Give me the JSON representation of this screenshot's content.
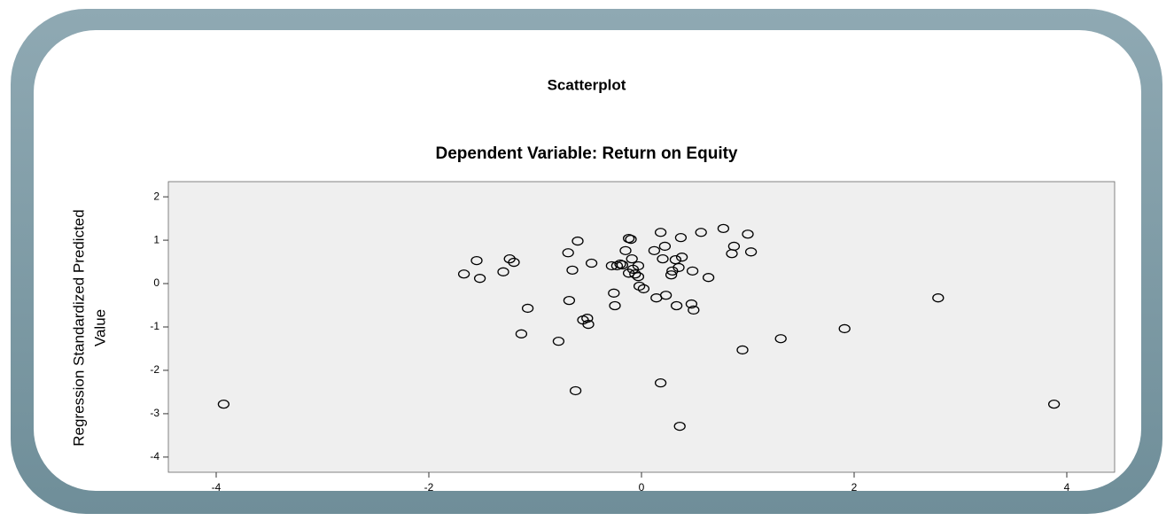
{
  "chart_data": {
    "type": "scatter",
    "title": "Scatterplot",
    "subtitle": "Dependent Variable: Return on Equity",
    "ylabel": [
      "Regression Standardized Predicted",
      "Value"
    ],
    "xlim": [
      -4.45,
      4.45
    ],
    "xticks": [
      -4,
      -2,
      0,
      2,
      4
    ],
    "ylim": [
      -4.35,
      2.35
    ],
    "yticks": [
      2,
      1,
      0,
      -1,
      -2,
      -3,
      -4
    ],
    "color": "#000000",
    "series": [
      {
        "x": [
          -3.93,
          3.88,
          2.79,
          1.91,
          1.31,
          0.95,
          0.36,
          0.18,
          -0.62,
          -1.67,
          -1.55,
          -1.52,
          -1.3,
          -1.24,
          -1.2,
          -1.07,
          -1.13,
          -0.78,
          -0.68,
          -0.69,
          -0.65,
          -0.6,
          -0.47,
          -0.55,
          -0.51,
          -0.5,
          -0.28,
          -0.26,
          -0.25,
          -0.23,
          -0.2,
          -0.18,
          -0.15,
          -0.12,
          -0.1,
          -0.12,
          -0.09,
          -0.08,
          -0.06,
          -0.03,
          -0.03,
          -0.02,
          0.02,
          0.12,
          0.14,
          0.18,
          0.2,
          0.22,
          0.23,
          0.28,
          0.29,
          0.32,
          0.33,
          0.35,
          0.37,
          0.38,
          0.48,
          0.47,
          0.49,
          0.56,
          0.63,
          0.77,
          0.85,
          0.87,
          1.0,
          1.03
        ],
        "values": [
          -2.78,
          -2.78,
          -0.33,
          -1.04,
          -1.27,
          -1.53,
          -3.29,
          -2.29,
          -2.47,
          0.22,
          0.53,
          0.12,
          0.27,
          0.57,
          0.49,
          -0.57,
          -1.16,
          -1.33,
          -0.39,
          0.71,
          0.31,
          0.98,
          0.47,
          -0.84,
          -0.8,
          -0.94,
          0.41,
          -0.22,
          -0.51,
          0.41,
          0.45,
          0.43,
          0.76,
          1.04,
          1.02,
          0.24,
          0.57,
          0.33,
          0.22,
          0.16,
          0.41,
          -0.06,
          -0.12,
          0.76,
          -0.33,
          1.18,
          0.57,
          0.86,
          -0.27,
          0.2,
          0.29,
          0.55,
          -0.51,
          0.37,
          1.06,
          0.61,
          0.29,
          -0.47,
          -0.61,
          1.18,
          0.14,
          1.27,
          0.69,
          0.86,
          1.14,
          0.73
        ]
      }
    ]
  }
}
